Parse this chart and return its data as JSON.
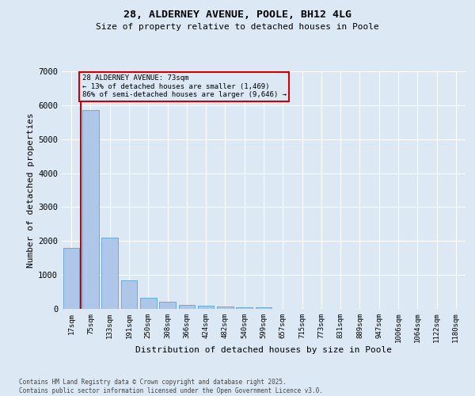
{
  "title_line1": "28, ALDERNEY AVENUE, POOLE, BH12 4LG",
  "title_line2": "Size of property relative to detached houses in Poole",
  "xlabel": "Distribution of detached houses by size in Poole",
  "ylabel": "Number of detached properties",
  "categories": [
    "17sqm",
    "75sqm",
    "133sqm",
    "191sqm",
    "250sqm",
    "308sqm",
    "366sqm",
    "424sqm",
    "482sqm",
    "540sqm",
    "599sqm",
    "657sqm",
    "715sqm",
    "773sqm",
    "831sqm",
    "889sqm",
    "947sqm",
    "1006sqm",
    "1064sqm",
    "1122sqm",
    "1180sqm"
  ],
  "values": [
    1800,
    5850,
    2100,
    830,
    330,
    200,
    120,
    90,
    70,
    55,
    40,
    0,
    0,
    0,
    0,
    0,
    0,
    0,
    0,
    0,
    0
  ],
  "bar_color": "#aec6e8",
  "bar_edge_color": "#6aaad4",
  "annotation_line1": "28 ALDERNEY AVENUE: 73sqm",
  "annotation_line2": "← 13% of detached houses are smaller (1,469)",
  "annotation_line3": "86% of semi-detached houses are larger (9,646) →",
  "annotation_box_edge_color": "#cc0000",
  "property_line_x": 0.5,
  "ylim_min": 0,
  "ylim_max": 7000,
  "yticks": [
    0,
    1000,
    2000,
    3000,
    4000,
    5000,
    6000,
    7000
  ],
  "background_color": "#dce9f5",
  "grid_color": "#ffffff",
  "footer_line1": "Contains HM Land Registry data © Crown copyright and database right 2025.",
  "footer_line2": "Contains public sector information licensed under the Open Government Licence v3.0."
}
